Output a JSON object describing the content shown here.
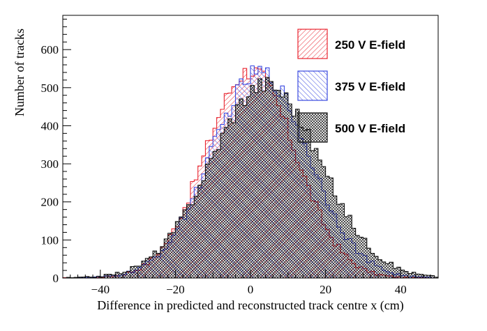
{
  "chart_data": {
    "type": "histogram",
    "title": "",
    "xlabel": "Difference in predicted and reconstructed track centre x (cm)",
    "ylabel": "Number of tracks",
    "xlim": [
      -50,
      50
    ],
    "ylim": [
      0,
      690
    ],
    "x_ticks": [
      -40,
      -20,
      0,
      20,
      40
    ],
    "y_ticks": [
      0,
      100,
      200,
      300,
      400,
      500,
      600
    ],
    "bin_width": 1,
    "legend_position": "top-right",
    "series": [
      {
        "name": "250 V E-field",
        "color": "#e8232e",
        "hatch": "diagonal-down",
        "mean": 0,
        "sigma": 12.0,
        "peak": 545
      },
      {
        "name": "375 V E-field",
        "color": "#3a49e0",
        "hatch": "diagonal-up",
        "mean": 2.5,
        "sigma": 13.0,
        "peak": 540
      },
      {
        "name": "500 V E-field",
        "color": "#111111",
        "hatch": "cross",
        "mean": 4.0,
        "sigma": 14.5,
        "peak": 510
      }
    ]
  }
}
